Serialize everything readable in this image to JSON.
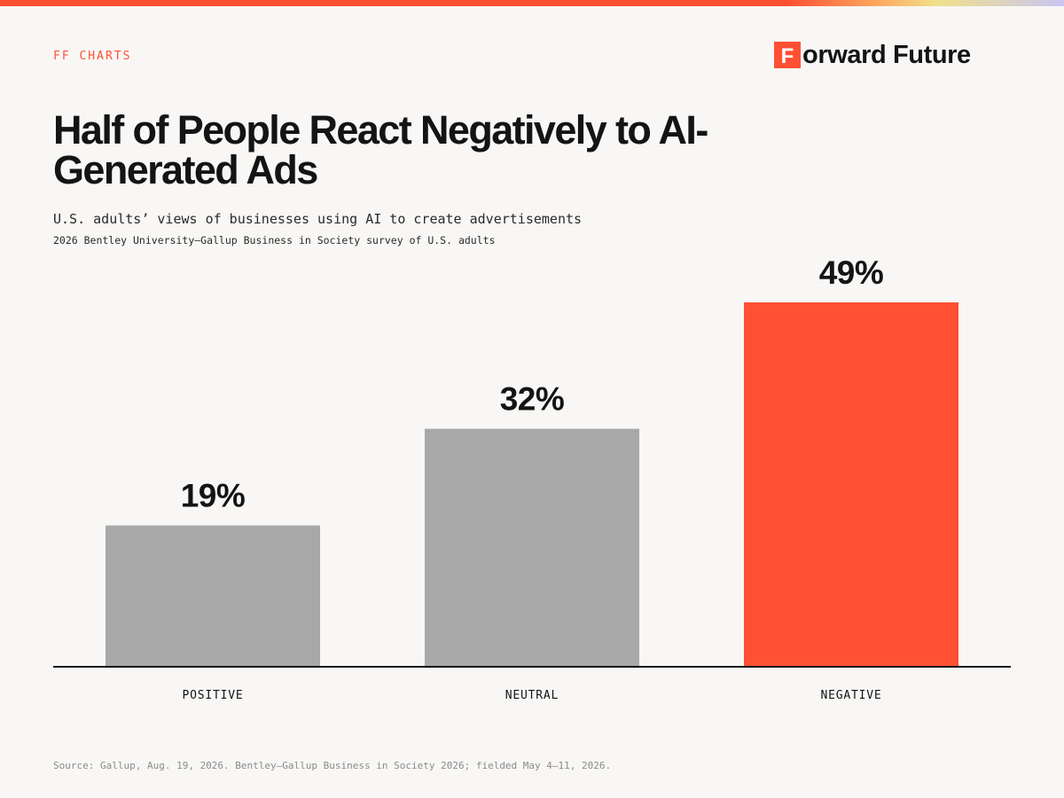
{
  "header": {
    "series_tag": "FF CHARTS",
    "brand": {
      "mark_letter": "F",
      "wordmark": "orward Future",
      "color": "#ff5033"
    }
  },
  "chart_data": {
    "type": "bar",
    "title": "Half of People React Negatively to AI-Generated Ads",
    "subtitle": "U.S. adults’ views of businesses using AI to create advertisements",
    "survey_note": "2026 Bentley University–Gallup Business in Society survey of U.S. adults",
    "categories": [
      "POSITIVE",
      "NEUTRAL",
      "NEGATIVE"
    ],
    "values": [
      19,
      32,
      49
    ],
    "value_labels": [
      "19%",
      "32%",
      "49%"
    ],
    "unit": "%",
    "ylim": [
      0,
      49
    ],
    "colors": [
      "#a9a8a8",
      "#a9a8a8",
      "#ff5033"
    ],
    "grid": false,
    "legend": "none",
    "xlabel": "",
    "ylabel": ""
  },
  "footer": {
    "source": "Source: Gallup, Aug. 19, 2026. Bentley–Gallup Business in Society 2026; fielded May 4–11, 2026."
  }
}
